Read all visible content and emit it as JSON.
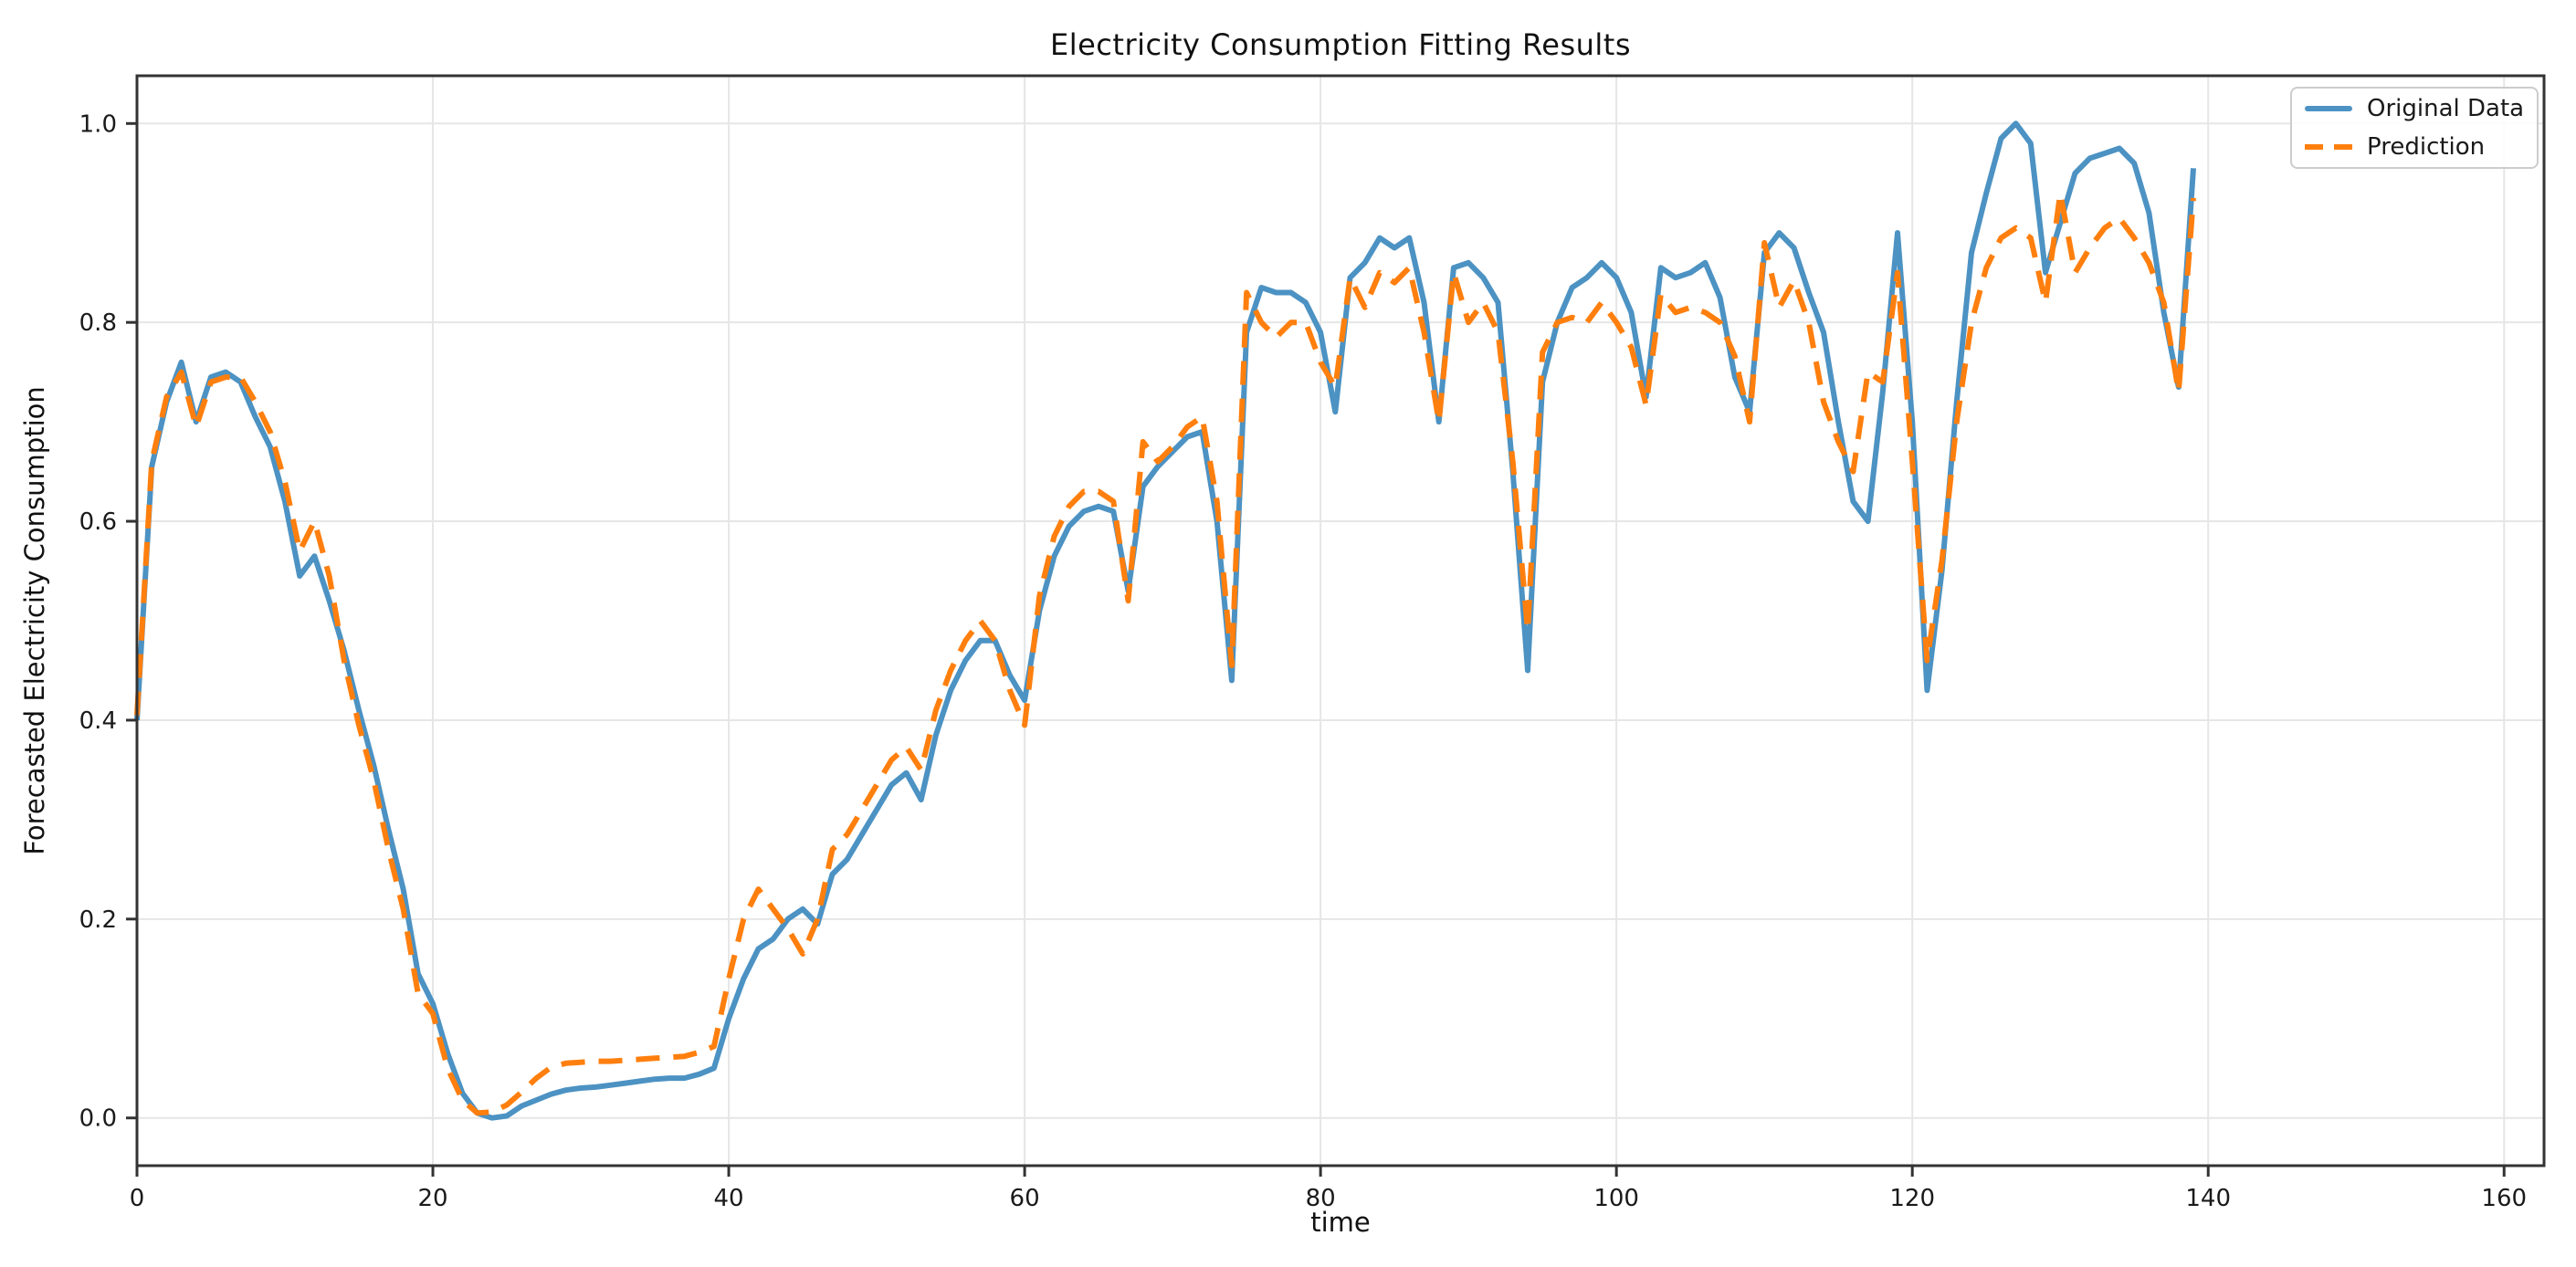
{
  "figure": {
    "title": "Electricity Consumption Fitting Results",
    "xlabel": "time",
    "ylabel": "Forecasted Electricity Consumption"
  },
  "legend": {
    "position": "upper right",
    "items": [
      {
        "label": "Original Data",
        "color": "#4C92C3",
        "dash": "solid"
      },
      {
        "label": "Prediction",
        "color": "#FF7F0E",
        "dash": "dashed"
      }
    ]
  },
  "chart_data": {
    "type": "line",
    "title": "Electricity Consumption Fitting Results",
    "xlabel": "time",
    "ylabel": "Forecasted Electricity Consumption",
    "x_start": 0,
    "x_step": 1,
    "xlim": [
      0,
      162.7
    ],
    "ylim": [
      -0.048,
      1.048
    ],
    "xticks": [
      0,
      20,
      40,
      60,
      80,
      100,
      120,
      140,
      160
    ],
    "yticks": [
      0.0,
      0.2,
      0.4,
      0.6,
      0.8,
      1.0
    ],
    "ytick_labels": [
      "0.0",
      "0.2",
      "0.4",
      "0.6",
      "0.8",
      "1.0"
    ],
    "grid": true,
    "grid_color": "#e6e6e6",
    "spine_color": "#333333",
    "tick_color": "#333333",
    "text_color": "#1a1a1a",
    "series": [
      {
        "name": "Original Data",
        "color": "#4C92C3",
        "style": "solid",
        "line_width": 6,
        "values": [
          0.4,
          0.655,
          0.72,
          0.76,
          0.7,
          0.745,
          0.75,
          0.74,
          0.705,
          0.675,
          0.62,
          0.545,
          0.565,
          0.52,
          0.47,
          0.41,
          0.355,
          0.29,
          0.23,
          0.145,
          0.115,
          0.065,
          0.025,
          0.005,
          0.0,
          0.002,
          0.012,
          0.018,
          0.024,
          0.028,
          0.03,
          0.031,
          0.033,
          0.035,
          0.037,
          0.039,
          0.04,
          0.04,
          0.044,
          0.05,
          0.1,
          0.14,
          0.17,
          0.18,
          0.2,
          0.21,
          0.195,
          0.245,
          0.26,
          0.285,
          0.31,
          0.335,
          0.347,
          0.32,
          0.385,
          0.43,
          0.46,
          0.48,
          0.48,
          0.445,
          0.42,
          0.51,
          0.565,
          0.595,
          0.61,
          0.615,
          0.61,
          0.53,
          0.635,
          0.655,
          0.67,
          0.685,
          0.69,
          0.6,
          0.44,
          0.79,
          0.835,
          0.83,
          0.83,
          0.82,
          0.79,
          0.71,
          0.845,
          0.86,
          0.885,
          0.875,
          0.885,
          0.82,
          0.7,
          0.855,
          0.86,
          0.845,
          0.82,
          0.65,
          0.45,
          0.74,
          0.8,
          0.835,
          0.845,
          0.86,
          0.845,
          0.81,
          0.725,
          0.855,
          0.845,
          0.85,
          0.86,
          0.825,
          0.745,
          0.71,
          0.87,
          0.89,
          0.875,
          0.83,
          0.79,
          0.7,
          0.62,
          0.6,
          0.73,
          0.89,
          0.7,
          0.43,
          0.55,
          0.72,
          0.87,
          0.93,
          0.985,
          1.0,
          0.98,
          0.85,
          0.9,
          0.95,
          0.965,
          0.97,
          0.975,
          0.96,
          0.91,
          0.81,
          0.735,
          0.955
        ]
      },
      {
        "name": "Prediction",
        "color": "#FF7F0E",
        "style": "dashed",
        "line_width": 6,
        "values": [
          0.405,
          0.66,
          0.725,
          0.75,
          0.695,
          0.74,
          0.745,
          0.745,
          0.72,
          0.69,
          0.64,
          0.57,
          0.6,
          0.545,
          0.46,
          0.395,
          0.34,
          0.27,
          0.21,
          0.125,
          0.105,
          0.05,
          0.018,
          0.005,
          0.006,
          0.013,
          0.026,
          0.04,
          0.051,
          0.055,
          0.056,
          0.057,
          0.057,
          0.058,
          0.059,
          0.06,
          0.061,
          0.062,
          0.066,
          0.072,
          0.14,
          0.2,
          0.23,
          0.21,
          0.19,
          0.165,
          0.2,
          0.27,
          0.285,
          0.31,
          0.335,
          0.36,
          0.373,
          0.35,
          0.41,
          0.45,
          0.48,
          0.5,
          0.48,
          0.43,
          0.395,
          0.525,
          0.585,
          0.615,
          0.63,
          0.63,
          0.62,
          0.52,
          0.68,
          0.66,
          0.675,
          0.695,
          0.705,
          0.62,
          0.455,
          0.83,
          0.8,
          0.785,
          0.8,
          0.8,
          0.76,
          0.735,
          0.845,
          0.815,
          0.85,
          0.84,
          0.855,
          0.79,
          0.7,
          0.85,
          0.8,
          0.82,
          0.79,
          0.66,
          0.49,
          0.77,
          0.8,
          0.805,
          0.8,
          0.82,
          0.8,
          0.775,
          0.717,
          0.828,
          0.81,
          0.815,
          0.81,
          0.8,
          0.766,
          0.7,
          0.88,
          0.815,
          0.842,
          0.8,
          0.72,
          0.68,
          0.65,
          0.75,
          0.74,
          0.85,
          0.66,
          0.46,
          0.56,
          0.7,
          0.8,
          0.855,
          0.885,
          0.895,
          0.885,
          0.82,
          0.93,
          0.85,
          0.875,
          0.895,
          0.905,
          0.885,
          0.86,
          0.82,
          0.73,
          0.925
        ]
      }
    ]
  }
}
